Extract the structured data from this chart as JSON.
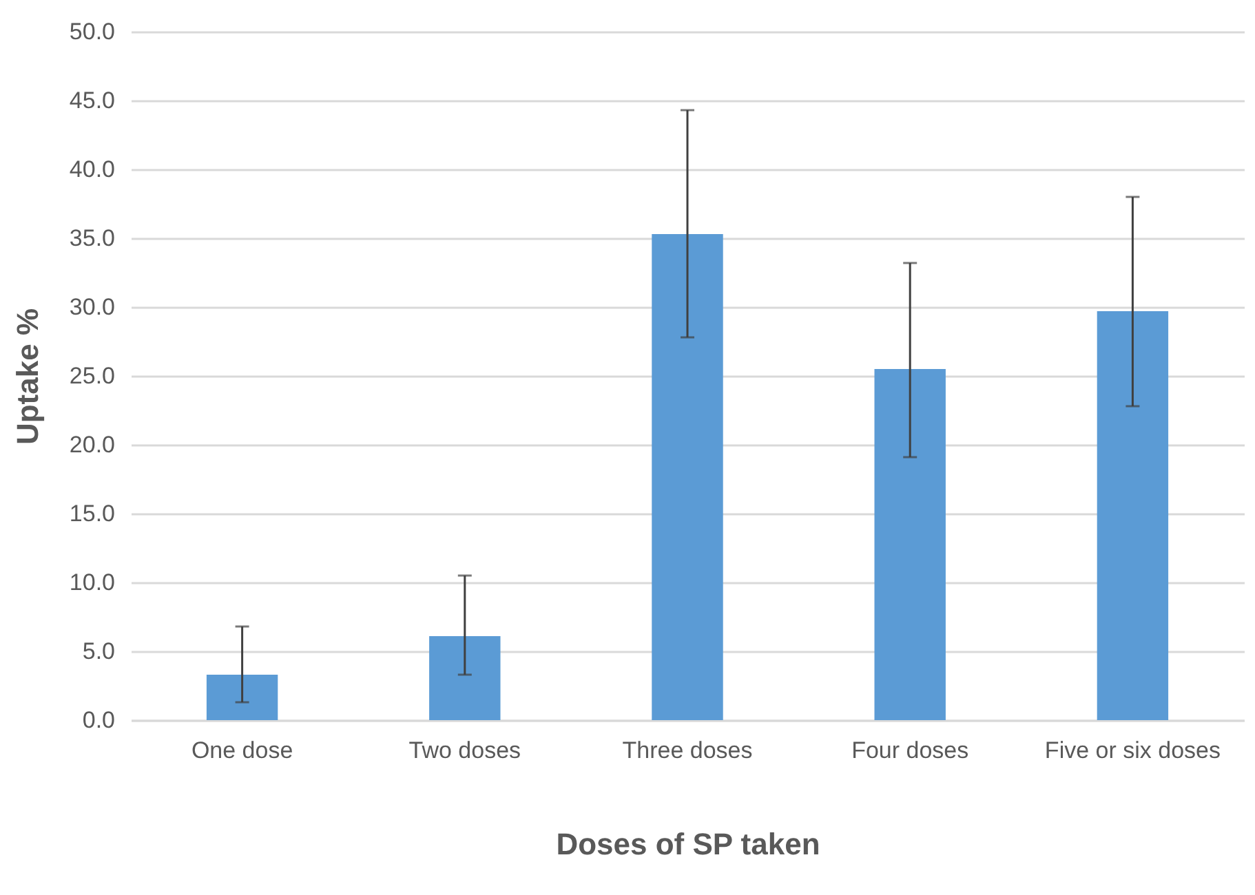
{
  "chart_data": {
    "type": "bar",
    "xlabel": "Doses of SP taken",
    "ylabel": "Uptake %",
    "categories": [
      "One dose",
      "Two doses",
      "Three doses",
      "Four doses",
      "Five or six doses"
    ],
    "values": [
      3.3,
      6.1,
      35.3,
      25.5,
      29.7
    ],
    "color": "#5b9bd5",
    "errors": [
      [
        1.3,
        6.8
      ],
      [
        3.3,
        10.5
      ],
      [
        27.8,
        44.3
      ],
      [
        19.1,
        33.2
      ],
      [
        22.8,
        38.0
      ]
    ],
    "ylim": [
      0,
      50
    ],
    "yticks": [
      {
        "value": 0,
        "label": "0.0"
      },
      {
        "value": 5,
        "label": "5.0"
      },
      {
        "value": 10,
        "label": "10.0"
      },
      {
        "value": 15,
        "label": "15.0"
      },
      {
        "value": 20,
        "label": "20.0"
      },
      {
        "value": 25,
        "label": "25.0"
      },
      {
        "value": 30,
        "label": "30.0"
      },
      {
        "value": 35,
        "label": "35.0"
      },
      {
        "value": 40,
        "label": "40.0"
      },
      {
        "value": 45,
        "label": "45.0"
      },
      {
        "value": 50,
        "label": "50.0"
      }
    ],
    "grid": "y"
  }
}
